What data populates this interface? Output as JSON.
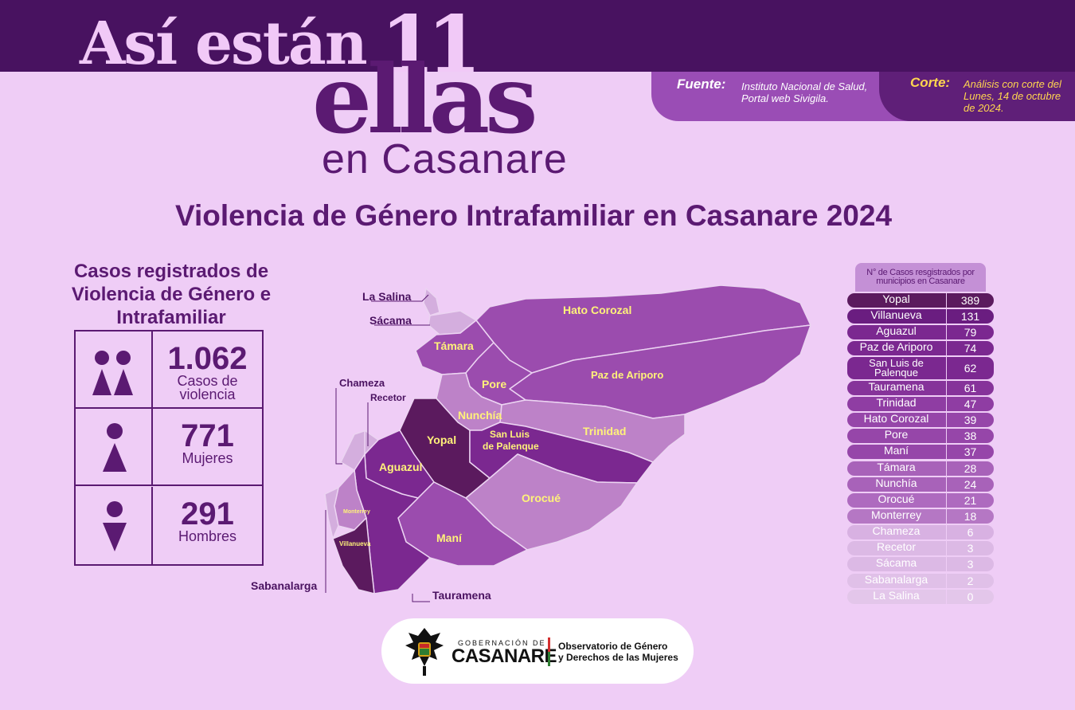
{
  "title": {
    "line1": "Así están",
    "number": "11",
    "line2": "ellas",
    "line3": "en Casanare"
  },
  "source": {
    "label": "Fuente:",
    "text": "Instituto Nacional de Salud, Portal web Sivigila."
  },
  "cutoff": {
    "label": "Corte:",
    "text": "Análisis con corte del Lunes, 14 de octubre de 2024."
  },
  "subtitle": "Violencia de Género Intrafamiliar en Casanare 2024",
  "cases": {
    "title": "Casos registrados de Violencia de Género e Intrafamiliar",
    "total": {
      "value": "1.062",
      "label": "Casos de violencia",
      "icon": "women-pair-icon"
    },
    "women": {
      "value": "771",
      "label": "Mujeres",
      "icon": "woman-icon"
    },
    "men": {
      "value": "291",
      "label": "Hombres",
      "icon": "man-icon"
    }
  },
  "map": {
    "labels": {
      "hato_corozal": "Hato Corozal",
      "paz_de_ariporo": "Paz de Ariporo",
      "tamara": "Támara",
      "pore": "Pore",
      "nunchia": "Nunchía",
      "trinidad": "Trinidad",
      "yopal": "Yopal",
      "san_luis_1": "San Luis",
      "san_luis_2": "de Palenque",
      "aguazul": "Aguazul",
      "orocue": "Orocué",
      "mani": "Maní",
      "monterrey": "Monterrey",
      "villanueva": "Villanueva"
    },
    "callouts": {
      "la_salina": "La Salina",
      "sacama": "Sácama",
      "chameza": "Chameza",
      "recetor": "Recetor",
      "sabanalarga": "Sabanalarga",
      "tauramena": "Tauramena"
    },
    "colors": {
      "darkest": "#5b1a5e",
      "dark": "#7b2890",
      "mid": "#9b4cae",
      "light": "#bd82c8",
      "lightest": "#d4aede"
    }
  },
  "table": {
    "header": "N° de Casos resgistrados por municipios en Casanare",
    "rows": [
      {
        "municipality": "Yopal",
        "cases": "389",
        "color": "#5b1a5e"
      },
      {
        "municipality": "Villanueva",
        "cases": "131",
        "color": "#6a1d80"
      },
      {
        "municipality": "Aguazul",
        "cases": "79",
        "color": "#7b2890"
      },
      {
        "municipality": "Paz de Ariporo",
        "cases": "74",
        "color": "#7b2890"
      },
      {
        "municipality": "San Luis de Palenque",
        "cases": "62",
        "color": "#7b2890"
      },
      {
        "municipality": "Tauramena",
        "cases": "61",
        "color": "#86339a"
      },
      {
        "municipality": "Trinidad",
        "cases": "47",
        "color": "#8f3da3"
      },
      {
        "municipality": "Hato Corozal",
        "cases": "39",
        "color": "#9646a9"
      },
      {
        "municipality": "Pore",
        "cases": "38",
        "color": "#9646a9"
      },
      {
        "municipality": "Maní",
        "cases": "37",
        "color": "#9646a9"
      },
      {
        "municipality": "Támara",
        "cases": "28",
        "color": "#a862b9"
      },
      {
        "municipality": "Nunchía",
        "cases": "24",
        "color": "#a862b9"
      },
      {
        "municipality": "Orocué",
        "cases": "21",
        "color": "#ae6abf"
      },
      {
        "municipality": "Monterrey",
        "cases": "18",
        "color": "#b577c4"
      },
      {
        "municipality": "Chameza",
        "cases": "6",
        "color": "#d8b1e2"
      },
      {
        "municipality": "Recetor",
        "cases": "3",
        "color": "#dcb9e5"
      },
      {
        "municipality": "Sácama",
        "cases": "3",
        "color": "#dcb9e5"
      },
      {
        "municipality": "Sabanalarga",
        "cases": "2",
        "color": "#e0c0e8"
      },
      {
        "municipality": "La Salina",
        "cases": "0",
        "color": "#e3c6ea"
      }
    ]
  },
  "footer": {
    "gob": "GOBERNACIÓN DE",
    "casanare": "CASANARE",
    "observatory_line1": "Observatorio de Género",
    "observatory_line2": "y Derechos de las Mujeres"
  }
}
